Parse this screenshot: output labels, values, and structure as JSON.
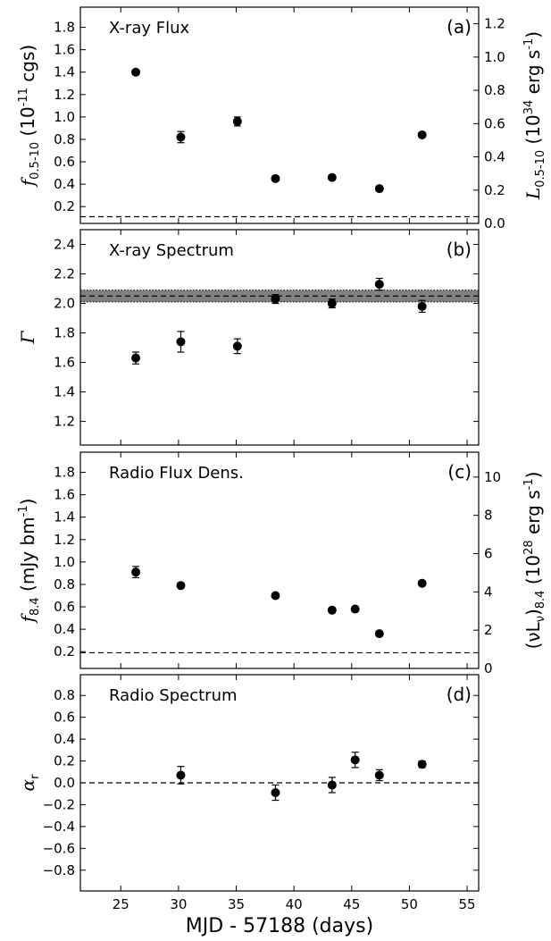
{
  "chart_data": [
    {
      "type": "scatter",
      "panel_label": "(a)",
      "title": "X-ray Flux",
      "ylabel": "f_{0.5-10} (10^{-11} cgs)",
      "ylabel_right": "L_{0.5-10} (10^{34} erg s^{-1})",
      "xlim": [
        21.5,
        56
      ],
      "ylim": [
        0.05,
        1.98
      ],
      "yticks": [
        "0.2",
        "0.4",
        "0.6",
        "0.8",
        "1.0",
        "1.2",
        "1.4",
        "1.6",
        "1.8"
      ],
      "yticks_right": [
        "0.0",
        "0.2",
        "0.4",
        "0.6",
        "0.8",
        "1.0",
        "1.2"
      ],
      "ylim_right": [
        0.0,
        1.3
      ],
      "reference_line": 0.11,
      "points": [
        {
          "x": 26.3,
          "y": 1.4,
          "err": 0.02
        },
        {
          "x": 30.2,
          "y": 0.82,
          "err": 0.05
        },
        {
          "x": 35.1,
          "y": 0.96,
          "err": 0.04
        },
        {
          "x": 38.4,
          "y": 0.45,
          "err": 0.02
        },
        {
          "x": 43.3,
          "y": 0.46,
          "err": 0.02
        },
        {
          "x": 47.4,
          "y": 0.36,
          "err": 0.02
        },
        {
          "x": 51.1,
          "y": 0.84,
          "err": 0.02
        }
      ]
    },
    {
      "type": "scatter",
      "panel_label": "(b)",
      "title": "X-ray Spectrum",
      "ylabel": "Γ",
      "xlim": [
        21.5,
        56
      ],
      "ylim": [
        1.04,
        2.5
      ],
      "yticks": [
        "1.2",
        "1.4",
        "1.6",
        "1.8",
        "2.0",
        "2.2",
        "2.4"
      ],
      "reference_line": 2.05,
      "band": [
        2.01,
        2.09
      ],
      "points": [
        {
          "x": 26.3,
          "y": 1.63,
          "err": 0.04
        },
        {
          "x": 30.2,
          "y": 1.74,
          "err": 0.07
        },
        {
          "x": 35.1,
          "y": 1.71,
          "err": 0.05
        },
        {
          "x": 38.4,
          "y": 2.03,
          "err": 0.03
        },
        {
          "x": 43.3,
          "y": 2.0,
          "err": 0.03
        },
        {
          "x": 47.4,
          "y": 2.13,
          "err": 0.04
        },
        {
          "x": 51.1,
          "y": 1.98,
          "err": 0.04
        }
      ]
    },
    {
      "type": "scatter",
      "panel_label": "(c)",
      "title": "Radio Flux Dens.",
      "ylabel": "f_{8.4} (mJy bm^{-1})",
      "ylabel_right": "(νL_ν)_{8.4} (10^{28} erg s^{-1})",
      "xlim": [
        21.5,
        56
      ],
      "ylim": [
        0.05,
        1.98
      ],
      "yticks": [
        "0.2",
        "0.4",
        "0.6",
        "0.8",
        "1.0",
        "1.2",
        "1.4",
        "1.6",
        "1.8"
      ],
      "yticks_right": [
        "0",
        "2",
        "4",
        "6",
        "8",
        "10"
      ],
      "ylim_right": [
        0,
        11.3
      ],
      "reference_line": 0.19,
      "points": [
        {
          "x": 26.3,
          "y": 0.91,
          "err": 0.05
        },
        {
          "x": 30.2,
          "y": 0.79,
          "err": 0.02
        },
        {
          "x": 38.4,
          "y": 0.7,
          "err": 0.02
        },
        {
          "x": 43.3,
          "y": 0.57,
          "err": 0.02
        },
        {
          "x": 45.3,
          "y": 0.58,
          "err": 0.02
        },
        {
          "x": 47.4,
          "y": 0.36,
          "err": 0.02
        },
        {
          "x": 51.1,
          "y": 0.81,
          "err": 0.02
        }
      ]
    },
    {
      "type": "scatter",
      "panel_label": "(d)",
      "title": "Radio Spectrum",
      "ylabel": "α_r",
      "xlabel": "MJD - 57188 (days)",
      "xlim": [
        21.5,
        56
      ],
      "ylim": [
        -0.99,
        0.99
      ],
      "yticks": [
        "−0.8",
        "−0.6",
        "−0.4",
        "−0.2",
        "0.0",
        "0.2",
        "0.4",
        "0.6",
        "0.8"
      ],
      "xticks": [
        "25",
        "30",
        "35",
        "40",
        "45",
        "50",
        "55"
      ],
      "reference_line": 0.0,
      "points": [
        {
          "x": 30.2,
          "y": 0.07,
          "err": 0.08
        },
        {
          "x": 38.4,
          "y": -0.09,
          "err": 0.07
        },
        {
          "x": 43.3,
          "y": -0.02,
          "err": 0.07
        },
        {
          "x": 45.3,
          "y": 0.21,
          "err": 0.07
        },
        {
          "x": 47.4,
          "y": 0.07,
          "err": 0.05
        },
        {
          "x": 51.1,
          "y": 0.17,
          "err": 0.03
        }
      ]
    }
  ]
}
